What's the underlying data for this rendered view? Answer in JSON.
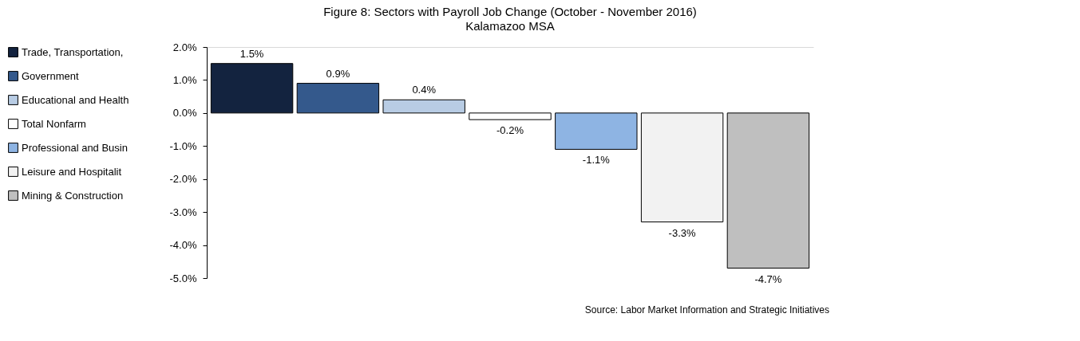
{
  "chart_data": {
    "type": "bar",
    "title": "Figure 8: Sectors with Payroll Job Change (October - November 2016)",
    "subtitle": "Kalamazoo MSA",
    "categories": [
      null,
      null,
      null,
      null,
      null,
      null,
      null
    ],
    "series": [
      {
        "name": "Trade, Transportation,",
        "color": "#13233f",
        "values": [
          1.5,
          null,
          null,
          null,
          null,
          null,
          null
        ],
        "value_labels": [
          "1.5%",
          null,
          null,
          null,
          null,
          null,
          null
        ]
      },
      {
        "name": "Government",
        "color": "#34598c",
        "values": [
          null,
          0.9,
          null,
          null,
          null,
          null,
          null
        ],
        "value_labels": [
          null,
          "0.9%",
          null,
          null,
          null,
          null,
          null
        ]
      },
      {
        "name": "Educational and Health",
        "color": "#b8cce4",
        "values": [
          null,
          null,
          0.4,
          null,
          null,
          null,
          null
        ],
        "value_labels": [
          null,
          null,
          "0.4%",
          null,
          null,
          null,
          null
        ]
      },
      {
        "name": "Total Nonfarm",
        "color": "#ffffff",
        "values": [
          null,
          null,
          null,
          -0.2,
          null,
          null,
          null
        ],
        "value_labels": [
          null,
          null,
          null,
          "-0.2%",
          null,
          null,
          null
        ]
      },
      {
        "name": "Professional and Busin",
        "color": "#8eb4e3",
        "values": [
          null,
          null,
          null,
          null,
          -1.1,
          null,
          null
        ],
        "value_labels": [
          null,
          null,
          null,
          null,
          "-1.1%",
          null,
          null
        ]
      },
      {
        "name": "Leisure and Hospitalit",
        "color": "#f2f2f2",
        "values": [
          null,
          null,
          null,
          null,
          null,
          -3.3,
          null
        ],
        "value_labels": [
          null,
          null,
          null,
          null,
          null,
          "-3.3%",
          null
        ]
      },
      {
        "name": "Mining & Construction",
        "color": "#bfbfbf",
        "values": [
          null,
          null,
          null,
          null,
          null,
          null,
          -4.7
        ],
        "value_labels": [
          null,
          null,
          null,
          null,
          null,
          null,
          "-4.7%"
        ]
      }
    ],
    "ylim": [
      -5,
      2
    ],
    "yticks": [
      {
        "value": 2,
        "label": "2.0%"
      },
      {
        "value": 1,
        "label": "1.0%"
      },
      {
        "value": 0,
        "label": "0.0%"
      },
      {
        "value": -1,
        "label": "-1.0%"
      },
      {
        "value": -2,
        "label": "-2.0%"
      },
      {
        "value": -3,
        "label": "-3.0%"
      },
      {
        "value": -4,
        "label": "-4.0%"
      },
      {
        "value": -5,
        "label": "-5.0%"
      }
    ],
    "grid": false,
    "legend": "left",
    "annotations": [
      "Source: Labor Market Information and Strategic Initiatives"
    ]
  }
}
